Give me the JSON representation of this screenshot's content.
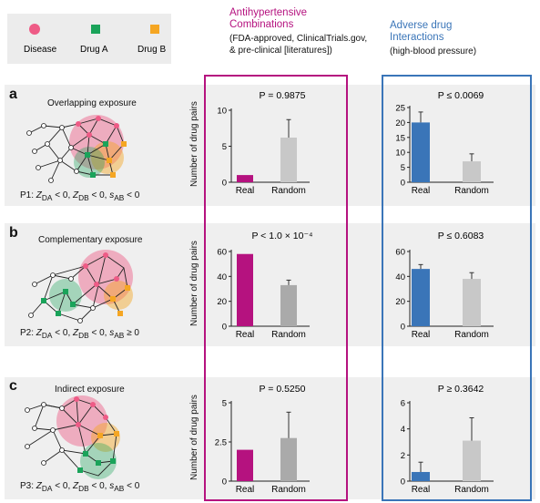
{
  "legend": {
    "disease": {
      "label": "Disease",
      "color": "#ee5b86"
    },
    "drug_a": {
      "label": "Drug A",
      "color": "#1aa35a"
    },
    "drug_b": {
      "label": "Drug B",
      "color": "#f5a623"
    }
  },
  "columns": {
    "antihypertensive": {
      "title_line1": "Antihypertensive",
      "title_line2": "Combinations",
      "subtitle_line1": "(FDA-approved, ClinicalTrials.gov,",
      "subtitle_line2": "& pre-clinical [literatures])",
      "color": "#b5127f"
    },
    "adverse": {
      "title_line1": "Adverse drug",
      "title_line2": "Interactions",
      "subtitle_line1": "(high-blood pressure)",
      "color": "#3a75b8"
    }
  },
  "panels": [
    {
      "letter": "a",
      "title": "Overlapping exposure",
      "prefix": "P1:",
      "formula_tail": "< 0",
      "formula_mid": "< 0,",
      "formula_first": "< 0,"
    },
    {
      "letter": "b",
      "title": "Complementary exposure",
      "prefix": "P2:",
      "formula_tail": "≥ 0",
      "formula_mid": "< 0,",
      "formula_first": "< 0,"
    },
    {
      "letter": "c",
      "title": "Indirect exposure",
      "prefix": "P3:",
      "formula_tail": "< 0",
      "formula_mid": "< 0,",
      "formula_first": "< 0,"
    }
  ],
  "ylabel": "Number of drug pairs",
  "chart_data": [
    {
      "type": "bar",
      "id": "a-left",
      "title": "P = 0.9875",
      "categories": [
        "Real",
        "Random"
      ],
      "values": [
        1,
        6.2
      ],
      "errors": [
        0,
        2.5
      ],
      "ylim": [
        0,
        10
      ],
      "yticks": [
        0,
        5,
        10
      ],
      "colors": [
        "#b5127f",
        "#c8c8c8"
      ]
    },
    {
      "type": "bar",
      "id": "a-right",
      "title": "P ≤ 0.0069",
      "categories": [
        "Real",
        "Random"
      ],
      "values": [
        20,
        7
      ],
      "errors": [
        3.5,
        2.5
      ],
      "ylim": [
        0,
        25
      ],
      "yticks": [
        0,
        5,
        10,
        15,
        20,
        25
      ],
      "colors": [
        "#3a75b8",
        "#c8c8c8"
      ]
    },
    {
      "type": "bar",
      "id": "b-left",
      "title": "P < 1.0 × 10⁻⁴",
      "categories": [
        "Real",
        "Random"
      ],
      "values": [
        58,
        33
      ],
      "errors": [
        0,
        4
      ],
      "ylim": [
        0,
        60
      ],
      "yticks": [
        0,
        20,
        40,
        60
      ],
      "colors": [
        "#b5127f",
        "#aaaaaa"
      ]
    },
    {
      "type": "bar",
      "id": "b-right",
      "title": "P ≤ 0.6083",
      "categories": [
        "Real",
        "Random"
      ],
      "values": [
        46,
        38
      ],
      "errors": [
        3.5,
        5
      ],
      "ylim": [
        0,
        60
      ],
      "yticks": [
        0,
        20,
        40,
        60
      ],
      "colors": [
        "#3a75b8",
        "#c8c8c8"
      ]
    },
    {
      "type": "bar",
      "id": "c-left",
      "title": "P = 0.5250",
      "categories": [
        "Real",
        "Random"
      ],
      "values": [
        2,
        2.75
      ],
      "errors": [
        0,
        1.65
      ],
      "ylim": [
        0,
        5
      ],
      "yticks": [
        0,
        2.5,
        5
      ],
      "ytick_labels": [
        "0",
        "2.5",
        "5"
      ],
      "colors": [
        "#b5127f",
        "#aaaaaa"
      ]
    },
    {
      "type": "bar",
      "id": "c-right",
      "title": "P ≥ 0.3642",
      "categories": [
        "Real",
        "Random"
      ],
      "values": [
        0.7,
        3.1
      ],
      "errors": [
        0.75,
        1.75
      ],
      "ylim": [
        0,
        6
      ],
      "yticks": [
        0,
        2,
        4,
        6
      ],
      "colors": [
        "#3a75b8",
        "#c8c8c8"
      ]
    }
  ]
}
